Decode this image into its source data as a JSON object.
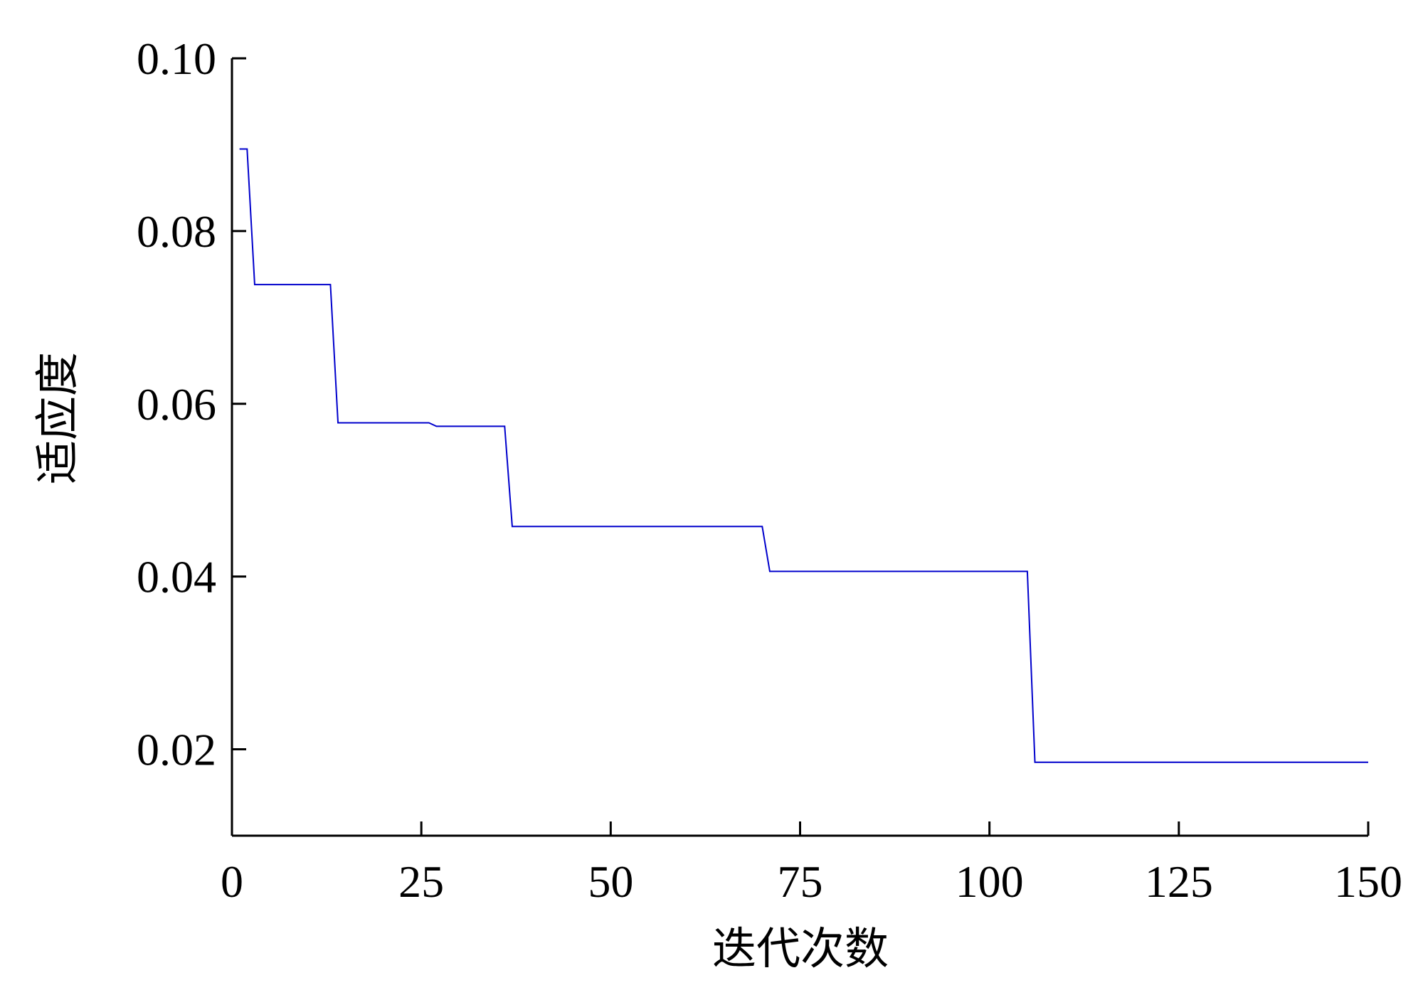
{
  "chart_data": {
    "type": "line",
    "xlabel": "迭代次数",
    "ylabel": "适应度",
    "xlim": [
      0,
      150
    ],
    "ylim": [
      0.01,
      0.1
    ],
    "xticks": [
      0,
      25,
      50,
      75,
      100,
      125,
      150
    ],
    "xtick_labels": [
      "0",
      "25",
      "50",
      "75",
      "100",
      "125",
      "150"
    ],
    "yticks": [
      0.02,
      0.04,
      0.06,
      0.08,
      0.1
    ],
    "ytick_labels": [
      "0.02",
      "0.04",
      "0.06",
      "0.08",
      "0.10"
    ],
    "grid": false,
    "series": [
      {
        "color": "#0000cc",
        "x": [
          1,
          2,
          3,
          13,
          14,
          26,
          27,
          36,
          37,
          70,
          71,
          105,
          106,
          150
        ],
        "y": [
          0.0895,
          0.0895,
          0.0738,
          0.0738,
          0.0578,
          0.0578,
          0.0574,
          0.0574,
          0.0458,
          0.0458,
          0.0406,
          0.0406,
          0.0185,
          0.0185
        ]
      }
    ]
  }
}
